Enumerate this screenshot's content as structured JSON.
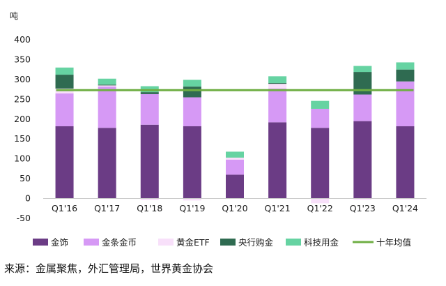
{
  "chart_data": {
    "type": "bar",
    "stacked": true,
    "unit_label": "吨",
    "ylim": [
      -50,
      400
    ],
    "yticks": [
      -50,
      0,
      50,
      100,
      150,
      200,
      250,
      300,
      350,
      400
    ],
    "grid": false,
    "legend_position": "bottom",
    "categories": [
      "Q1'16",
      "Q1'17",
      "Q1'18",
      "Q1'19",
      "Q1'20",
      "Q1'21",
      "Q1'22",
      "Q1'23",
      "Q1'24"
    ],
    "series": [
      {
        "name": "金饰",
        "color": "#6b3c85",
        "values": [
          182,
          178,
          186,
          182,
          60,
          192,
          178,
          195,
          182
        ]
      },
      {
        "name": "金条金币",
        "color": "#d699f5",
        "values": [
          83,
          104,
          77,
          73,
          38,
          85,
          48,
          67,
          113
        ]
      },
      {
        "name": "黄金ETF",
        "color": "#f8e0fa",
        "values": [
          12,
          3,
          -4,
          -5,
          5,
          12,
          -12,
          -3,
          -2
        ]
      },
      {
        "name": "央行购金",
        "color": "#2f6b51",
        "values": [
          35,
          2,
          5,
          27,
          0,
          2,
          0,
          57,
          30
        ]
      },
      {
        "name": "科技用金",
        "color": "#66d3a2",
        "values": [
          18,
          15,
          15,
          17,
          15,
          17,
          20,
          15,
          18
        ]
      }
    ],
    "average_line": {
      "name": "十年均值",
      "color": "#6fae43",
      "value": 273
    }
  },
  "source_text": "来源：金属聚焦，外汇管理局，世界黄金协会"
}
